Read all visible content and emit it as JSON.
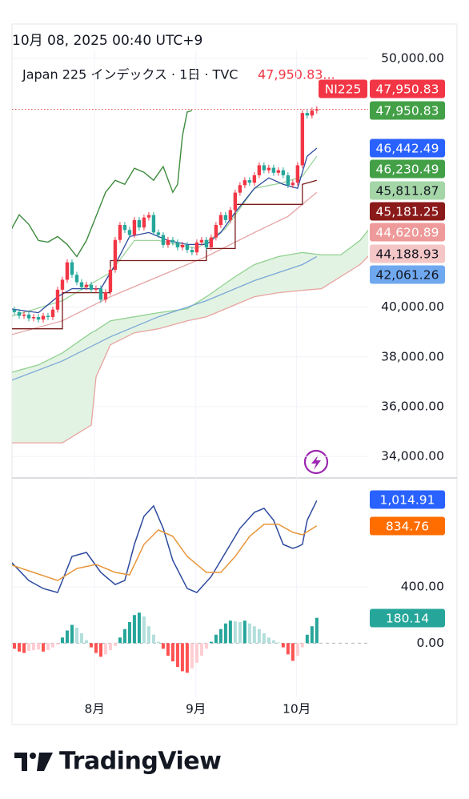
{
  "header": {
    "datetime": "10月 08, 2025 00:40 UTC+9"
  },
  "logo": "TradingView",
  "chart_data": [
    {
      "type": "candlestick",
      "legend": "Japan 225 インデックス · 1日 · TVC",
      "legend_value": "47,950.83...",
      "symbol": "NI225",
      "xlim": [
        -0.5,
        73.7
      ],
      "xticks": [
        {
          "value": 16.7,
          "label": "8月"
        },
        {
          "value": 37.8,
          "label": "9月"
        },
        {
          "value": 58.8,
          "label": "10月"
        }
      ],
      "ylim": [
        33200,
        50250
      ],
      "yticks": [
        {
          "value": 50000,
          "label": "50,000.00"
        },
        {
          "value": 40000,
          "label": "40,000.00"
        },
        {
          "value": 38000,
          "label": "38,000.00"
        },
        {
          "value": 36000,
          "label": "36,000.00"
        },
        {
          "value": 34000,
          "label": "34,000.00"
        }
      ],
      "grid": true,
      "up_color": "#f23645",
      "down_color": "#26a69a",
      "last_line_color": "#d9534f",
      "open": [
        39900,
        39800,
        39650,
        39700,
        39550,
        39600,
        39500,
        39650,
        39600,
        39900,
        40700,
        41100,
        41800,
        41300,
        41000,
        40800,
        40900,
        40700,
        40750,
        40300,
        40600,
        41500,
        42700,
        43300,
        43100,
        42900,
        43500,
        43200,
        43600,
        43700,
        43000,
        42900,
        42500,
        42700,
        42600,
        42400,
        42500,
        42300,
        42200,
        42600,
        42700,
        42400,
        42800,
        43300,
        43700,
        43500,
        43900,
        44600,
        44900,
        45100,
        45000,
        45300,
        45700,
        45500,
        45600,
        45400,
        45500,
        45300,
        44900,
        45000,
        45700,
        47800,
        47700,
        47900
      ],
      "high": [
        40020,
        39920,
        39820,
        39820,
        39720,
        39720,
        39770,
        39770,
        40020,
        40820,
        41220,
        41920,
        41920,
        41420,
        41120,
        41020,
        41020,
        40870,
        40870,
        40720,
        41620,
        42820,
        43420,
        43420,
        43220,
        43620,
        43620,
        43720,
        43820,
        43820,
        43120,
        43020,
        42820,
        42820,
        42720,
        42620,
        42620,
        42420,
        42720,
        42820,
        42820,
        42920,
        43420,
        43820,
        43820,
        44020,
        44720,
        45020,
        45220,
        45220,
        45420,
        45820,
        45820,
        45720,
        45720,
        45620,
        45620,
        45420,
        45120,
        45820,
        47920,
        47920,
        48020,
        48070
      ],
      "low": [
        39680,
        39530,
        39530,
        39430,
        39430,
        39380,
        39380,
        39480,
        39480,
        39780,
        40580,
        40980,
        41180,
        40880,
        40680,
        40680,
        40580,
        40580,
        40180,
        40180,
        40480,
        41380,
        42580,
        42980,
        42780,
        42780,
        43080,
        43080,
        43480,
        42880,
        42780,
        42380,
        42380,
        42480,
        42280,
        42280,
        42180,
        42080,
        42080,
        42480,
        42280,
        42280,
        42680,
        43180,
        43380,
        43380,
        43780,
        44480,
        44780,
        44880,
        44880,
        45180,
        45380,
        45380,
        45280,
        45280,
        45180,
        44780,
        44780,
        44880,
        45580,
        47580,
        47580,
        47780
      ],
      "close": [
        39800,
        39650,
        39700,
        39550,
        39600,
        39500,
        39650,
        39600,
        39900,
        40700,
        41100,
        41800,
        41300,
        41000,
        40800,
        40900,
        40700,
        40750,
        40300,
        40600,
        41500,
        42700,
        43300,
        43100,
        42900,
        43500,
        43200,
        43600,
        43700,
        43000,
        42900,
        42500,
        42700,
        42600,
        42400,
        42500,
        42300,
        42200,
        42600,
        42700,
        42400,
        42800,
        43300,
        43700,
        43500,
        43900,
        44600,
        44900,
        45100,
        45000,
        45300,
        45700,
        45500,
        45600,
        45400,
        45500,
        45300,
        44900,
        45000,
        45700,
        47800,
        47700,
        47900,
        47950.83
      ],
      "cloud_color": "#e3f3e3",
      "lines": [
        {
          "color": "#8fd18f",
          "x": [
            -1,
            5,
            10,
            16,
            17,
            20,
            25,
            30,
            36,
            40,
            46,
            50,
            55,
            60,
            64,
            68,
            72,
            74
          ],
          "values": [
            37355,
            37677,
            38161,
            38968,
            39065,
            39452,
            39613,
            39774,
            39935,
            40419,
            41226,
            41710,
            42032,
            42194,
            42097,
            42097,
            42677,
            43161
          ]
        },
        {
          "color": "#e8a4a0",
          "x": [
            -1,
            5,
            10,
            16,
            17,
            20,
            25,
            30,
            36,
            40,
            46,
            50,
            55,
            60,
            64,
            68,
            72,
            74
          ],
          "values": [
            34548,
            34548,
            34548,
            35258,
            37194,
            38484,
            38968,
            39129,
            39452,
            39613,
            40097,
            40419,
            40581,
            40677,
            40742,
            41226,
            41710,
            42097
          ]
        },
        {
          "color": "#7aa7d8",
          "x": [
            -1,
            10,
            20,
            30,
            40,
            50,
            60,
            63
          ],
          "values": [
            37032,
            37839,
            38806,
            39613,
            40258,
            41065,
            41710,
            42032
          ]
        },
        {
          "color": "#e5a3a3",
          "x": [
            -1,
            10,
            20,
            30,
            40,
            50,
            57,
            63
          ],
          "values": [
            38871,
            39452,
            40419,
            41226,
            42032,
            43000,
            43645,
            44613
          ]
        },
        {
          "color": "#9bd49b",
          "x": [
            -1,
            10,
            20,
            25,
            30,
            38,
            44,
            50,
            56,
            60,
            63
          ],
          "values": [
            39613,
            40258,
            41387,
            42677,
            42677,
            42355,
            43161,
            44774,
            45000,
            45258,
            46065
          ]
        },
        {
          "color": "#2e4a9e",
          "x": [
            -1,
            5,
            9,
            12,
            18,
            21,
            24,
            28,
            32,
            36,
            40,
            43,
            46,
            50,
            53,
            56,
            59,
            61,
            63
          ],
          "values": [
            39935,
            39774,
            40419,
            40742,
            40742,
            41710,
            42839,
            43000,
            42677,
            42516,
            42516,
            43000,
            43806,
            44774,
            45194,
            44935,
            44774,
            46065,
            46387
          ]
        },
        {
          "color": "#7a1a1a",
          "x": [
            -1,
            10,
            10,
            20,
            20,
            40,
            40,
            46,
            46,
            60,
            60,
            63
          ],
          "values": [
            39129,
            39129,
            40581,
            40581,
            41871,
            41871,
            42355,
            42355,
            44129,
            44129,
            44935,
            45097
          ]
        },
        {
          "color": "#3d8b3d",
          "x": [
            -1,
            1,
            3,
            5,
            7,
            9,
            11,
            13,
            15,
            17,
            19,
            21,
            23,
            25,
            27,
            29,
            31,
            33,
            34,
            35,
            36,
            37
          ],
          "values": [
            43000,
            43710,
            43323,
            42677,
            42613,
            42839,
            42516,
            42032,
            42677,
            43645,
            44613,
            45097,
            44935,
            45581,
            45419,
            45097,
            45645,
            44613,
            44935,
            46871,
            47839,
            47903
          ]
        }
      ],
      "price_labels": {
        "values": [
          47950.83,
          47950.83,
          46442.49,
          46230.49,
          45811.87,
          45181.25,
          44620.89,
          44188.93,
          42061.26
        ],
        "value_labels": [
          "47,950.83",
          "47,950.83",
          "46,442.49",
          "46,230.49",
          "45,811.87",
          "45,181.25",
          "44,620.89",
          "44,188.93",
          "42,061.26"
        ],
        "colors": [
          "#f23645",
          "#43a047",
          "#2962ff",
          "#43a047",
          "#a5d6a7",
          "#8b1a1a",
          "#ef9a9a",
          "#f5c6c6",
          "#6fa8ef"
        ],
        "text_colors": [
          "#ffffff",
          "#ffffff",
          "#ffffff",
          "#ffffff",
          "#131722",
          "#ffffff",
          "#ffffff",
          "#131722",
          "#131722"
        ]
      }
    },
    {
      "type": "macd",
      "ylim": [
        -380,
        1170
      ],
      "yticks": [
        {
          "value": 400,
          "label": "400.00"
        },
        {
          "value": 0,
          "label": "0.00"
        }
      ],
      "lines": [
        {
          "color": "#2e4a9e",
          "x": [
            -1,
            3,
            6,
            9,
            12,
            15,
            18,
            21,
            23,
            25,
            27,
            29,
            31,
            33,
            36,
            38,
            41,
            44,
            47,
            50,
            52,
            54,
            56,
            58,
            59,
            60,
            61,
            63
          ],
          "values": [
            589,
            446,
            389,
            360,
            617,
            646,
            503,
            417,
            446,
            703,
            903,
            977,
            817,
            589,
            389,
            360,
            474,
            646,
            817,
            931,
            960,
            874,
            703,
            674,
            686,
            703,
            874,
            1014.91
          ]
        },
        {
          "color": "#e8963a",
          "x": [
            -1,
            4,
            9,
            13,
            17,
            21,
            24,
            27,
            30,
            33,
            36,
            40,
            43,
            46,
            49,
            52,
            55,
            58,
            60,
            63
          ],
          "values": [
            560,
            503,
            446,
            531,
            560,
            503,
            486,
            703,
            806,
            760,
            617,
            503,
            503,
            617,
            760,
            846,
            846,
            789,
            771,
            834.76
          ]
        }
      ],
      "histogram": {
        "values": [
          -40,
          -60,
          -70,
          -55,
          -50,
          -45,
          -60,
          -50,
          -30,
          -10,
          40,
          90,
          130,
          110,
          70,
          20,
          -30,
          -70,
          -97,
          -80,
          -50,
          -20,
          40,
          100,
          150,
          200,
          217,
          190,
          120,
          60,
          10,
          -40,
          -90,
          -130,
          -170,
          -200,
          -211,
          -180,
          -140,
          -90,
          -40,
          10,
          60,
          100,
          140,
          160,
          155,
          150,
          160,
          140,
          120,
          100,
          70,
          40,
          20,
          5,
          -30,
          -80,
          -126,
          -90,
          -30,
          60,
          120,
          180.14
        ],
        "colors": {
          "up_grow": "#26a69a",
          "up_fall": "#b2dfdb",
          "down_grow": "#ff5252",
          "down_fall": "#ffcdd2"
        }
      },
      "price_labels": {
        "values": [
          1014.91,
          834.76,
          180.14
        ],
        "value_labels": [
          "1,014.91",
          "834.76",
          "180.14"
        ],
        "colors": [
          "#2962ff",
          "#ff6d00",
          "#26a69a"
        ],
        "text_colors": [
          "#ffffff",
          "#ffffff",
          "#ffffff"
        ]
      }
    }
  ]
}
